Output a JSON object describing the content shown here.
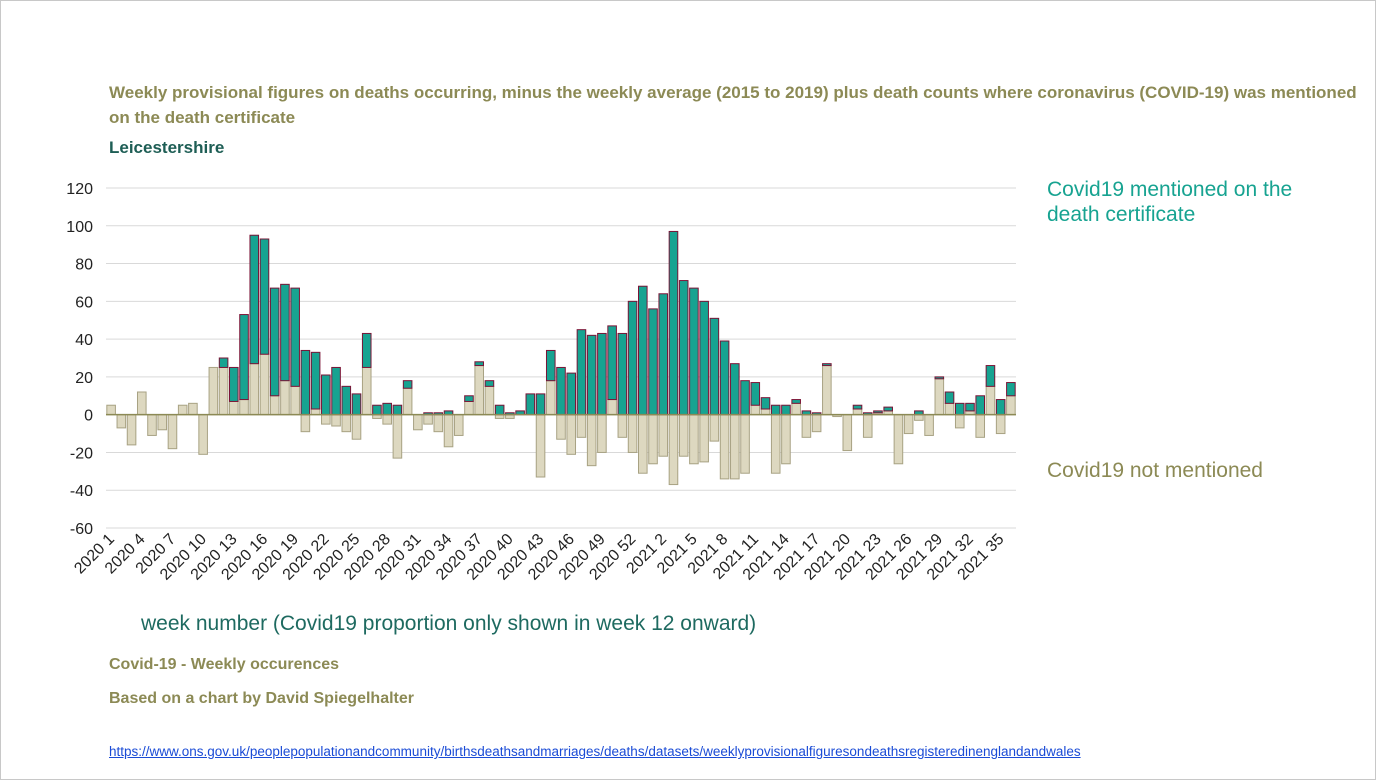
{
  "chart_data": {
    "type": "bar",
    "stacked": true,
    "title": "Weekly provisional figures on deaths occurring, minus the weekly average (2015 to 2019) plus death counts where coronavirus (COVID-19) was mentioned on the death certificate",
    "subtitle": "Leicestershire",
    "x_label": "week number (Covid19 proportion only shown in week 12 onward)",
    "categories": [
      "2020 1",
      null,
      null,
      "2020 4",
      null,
      null,
      "2020 7",
      null,
      null,
      "2020 10",
      null,
      null,
      "2020 13",
      null,
      null,
      "2020 16",
      null,
      null,
      "2020 19",
      null,
      null,
      "2020 22",
      null,
      null,
      "2020 25",
      null,
      null,
      "2020 28",
      null,
      null,
      "2020 31",
      null,
      null,
      "2020 34",
      null,
      null,
      "2020 37",
      null,
      null,
      "2020 40",
      null,
      null,
      "2020 43",
      null,
      null,
      "2020 46",
      null,
      null,
      "2020 49",
      null,
      null,
      "2020 52",
      null,
      null,
      "2021 2",
      null,
      null,
      "2021 5",
      null,
      null,
      "2021 8",
      null,
      null,
      "2021 11",
      null,
      null,
      "2021 14",
      null,
      null,
      "2021 17",
      null,
      null,
      "2021 20",
      null,
      null,
      "2021 23",
      null,
      null,
      "2021 26",
      null,
      null,
      "2021 29",
      null,
      null,
      "2021 32",
      null,
      null,
      "2021 35",
      null
    ],
    "series": [
      {
        "name": "Covid19 not mentioned",
        "color": "#ddd8c0",
        "stroke": "#a8a283",
        "values": [
          5,
          -7,
          -16,
          12,
          -11,
          -8,
          -18,
          5,
          6,
          -21,
          25,
          25,
          7,
          8,
          27,
          32,
          10,
          18,
          15,
          -9,
          3,
          -5,
          -6,
          -9,
          -13,
          25,
          -2,
          -5,
          -23,
          14,
          -8,
          -5,
          -9,
          -17,
          -11,
          7,
          26,
          15,
          -2,
          -2,
          0,
          0,
          -33,
          18,
          -13,
          -21,
          -12,
          -27,
          -20,
          8,
          -12,
          -20,
          -31,
          -26,
          -22,
          -37,
          -22,
          -26,
          -25,
          -14,
          -34,
          -34,
          -31,
          5,
          3,
          -31,
          -26,
          6,
          -12,
          -9,
          26,
          -1,
          -19,
          3,
          -12,
          1,
          2,
          -26,
          -10,
          -3,
          -11,
          19,
          6,
          -7,
          2,
          -12,
          15,
          -10,
          10
        ]
      },
      {
        "name": "Covid19 mentioned on the death certificate",
        "color": "#17a391",
        "stroke": "#7a1436",
        "values": [
          null,
          null,
          null,
          null,
          null,
          null,
          null,
          null,
          null,
          null,
          null,
          5,
          18,
          45,
          68,
          61,
          57,
          51,
          52,
          34,
          30,
          21,
          25,
          15,
          11,
          18,
          5,
          6,
          5,
          4,
          0,
          1,
          1,
          2,
          0,
          3,
          2,
          3,
          5,
          1,
          2,
          11,
          11,
          16,
          25,
          22,
          45,
          42,
          43,
          39,
          43,
          60,
          68,
          56,
          64,
          97,
          71,
          67,
          60,
          51,
          39,
          27,
          18,
          12,
          6,
          5,
          5,
          2,
          2,
          1,
          1,
          0,
          0,
          2,
          1,
          1,
          2,
          0,
          0,
          2,
          0,
          1,
          6,
          6,
          4,
          10,
          11,
          8,
          7
        ]
      }
    ],
    "ylim": [
      -60,
      120
    ],
    "yticks": [
      -60,
      -40,
      -20,
      0,
      20,
      40,
      60,
      80,
      100,
      120
    ],
    "grid": true
  },
  "footer": {
    "note": "Covid-19 - Weekly occurences",
    "credit": "Based on a chart by David Spiegelhalter",
    "url": "https://www.ons.gov.uk/peoplepopulationandcommunity/birthsdeathsandmarriages/deaths/datasets/weeklyprovisionalfiguresondeathsregisteredinenglandandwales"
  }
}
